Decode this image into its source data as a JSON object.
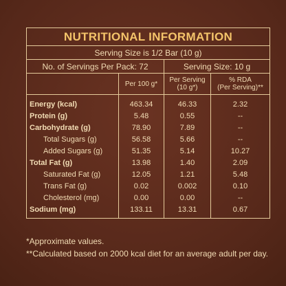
{
  "title": "NUTRITIONAL INFORMATION",
  "serving_size": "Serving Size is 1/2 Bar (10 g)",
  "servings_per_pack": "No. of Servings Per Pack: 72",
  "serving_size_short": "Serving Size: 10 g",
  "columns": [
    [
      "Per 100 g*"
    ],
    [
      "Per Serving",
      "(10 g*)"
    ],
    [
      "% RDA",
      "(Per Serving)**"
    ]
  ],
  "rows": [
    {
      "label": "Energy (kcal)",
      "bold": true,
      "values": [
        "463.34",
        "46.33",
        "2.32"
      ]
    },
    {
      "label": "Protein (g)",
      "bold": true,
      "values": [
        "5.48",
        "0.55",
        "--"
      ]
    },
    {
      "label": "Carbohydrate (g)",
      "bold": true,
      "values": [
        "78.90",
        "7.89",
        "--"
      ]
    },
    {
      "label": "Total Sugars (g)",
      "bold": false,
      "values": [
        "56.58",
        "5.66",
        "--"
      ]
    },
    {
      "label": "Added Sugars (g)",
      "bold": false,
      "values": [
        "51.35",
        "5.14",
        "10.27"
      ]
    },
    {
      "label": "Total Fat (g)",
      "bold": true,
      "values": [
        "13.98",
        "1.40",
        "2.09"
      ]
    },
    {
      "label": "Saturated Fat (g)",
      "bold": false,
      "values": [
        "12.05",
        "1.21",
        "5.48"
      ]
    },
    {
      "label": "Trans Fat (g)",
      "bold": false,
      "values": [
        "0.02",
        "0.002",
        "0.10"
      ]
    },
    {
      "label": "Cholesterol (mg)",
      "bold": false,
      "values": [
        "0.00",
        "0.00",
        "--"
      ]
    },
    {
      "label": "Sodium (mg)",
      "bold": true,
      "values": [
        "133.11",
        "13.31",
        "0.67"
      ]
    }
  ],
  "footnotes": [
    "*Approximate values.",
    "**Calculated based on 2000 kcal diet for an average adult per day."
  ]
}
